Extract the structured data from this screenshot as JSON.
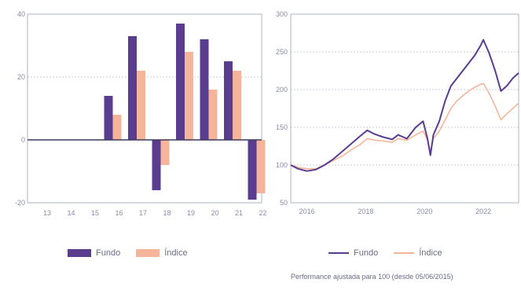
{
  "colors": {
    "fundo": "#5b3d8f",
    "indice": "#f5b59a",
    "grid": "#9aa0b8",
    "axis_text": "#8a8aa8",
    "zero_line": "#3a3a5a"
  },
  "chart_data": [
    {
      "type": "bar",
      "categories": [
        "13",
        "14",
        "15",
        "16",
        "17",
        "18",
        "19",
        "20",
        "21",
        "22"
      ],
      "series": [
        {
          "name": "Fundo",
          "values": [
            0,
            0,
            0,
            14,
            33,
            -16,
            37,
            32,
            25,
            -19
          ]
        },
        {
          "name": "Índice",
          "values": [
            0,
            0,
            0,
            8,
            22,
            -8,
            28,
            16,
            22,
            -17
          ]
        }
      ],
      "ylim": [
        -20,
        40
      ],
      "yticks": [
        "40",
        "20",
        "0",
        "-20"
      ],
      "grid": true,
      "legend": "bottom"
    },
    {
      "type": "line",
      "x_ticks": [
        "2016",
        "2018",
        "2020",
        "2022"
      ],
      "ylim": [
        50,
        300
      ],
      "yticks": [
        "300",
        "250",
        "200",
        "150",
        "100",
        "50"
      ],
      "x": [
        2015.45,
        2015.7,
        2016.0,
        2016.3,
        2016.6,
        2016.9,
        2017.2,
        2017.5,
        2017.8,
        2018.05,
        2018.3,
        2018.6,
        2018.9,
        2019.1,
        2019.4,
        2019.7,
        2019.95,
        2020.1,
        2020.2,
        2020.3,
        2020.5,
        2020.7,
        2020.9,
        2021.1,
        2021.3,
        2021.5,
        2021.7,
        2021.9,
        2022.0,
        2022.2,
        2022.4,
        2022.6,
        2022.8,
        2023.0,
        2023.2
      ],
      "series": [
        {
          "name": "Fundo",
          "values": [
            100,
            95,
            92,
            94,
            100,
            108,
            118,
            128,
            138,
            146,
            141,
            137,
            134,
            140,
            135,
            150,
            158,
            135,
            113,
            140,
            158,
            185,
            205,
            215,
            225,
            235,
            245,
            258,
            266,
            248,
            225,
            198,
            205,
            215,
            222
          ]
        },
        {
          "name": "Índice",
          "values": [
            100,
            97,
            95,
            95,
            100,
            106,
            112,
            120,
            127,
            135,
            133,
            132,
            130,
            135,
            133,
            140,
            145,
            133,
            118,
            135,
            145,
            160,
            175,
            185,
            192,
            198,
            203,
            207,
            208,
            195,
            178,
            160,
            168,
            175,
            182
          ]
        }
      ],
      "grid": true,
      "legend": "bottom"
    }
  ],
  "legend_left": {
    "fundo": "Fundo",
    "indice": "Índice"
  },
  "legend_right": {
    "fundo": "Fundo",
    "indice": "Índice"
  },
  "note": "Performance ajustada para 100 (desde 05/06/2015)"
}
